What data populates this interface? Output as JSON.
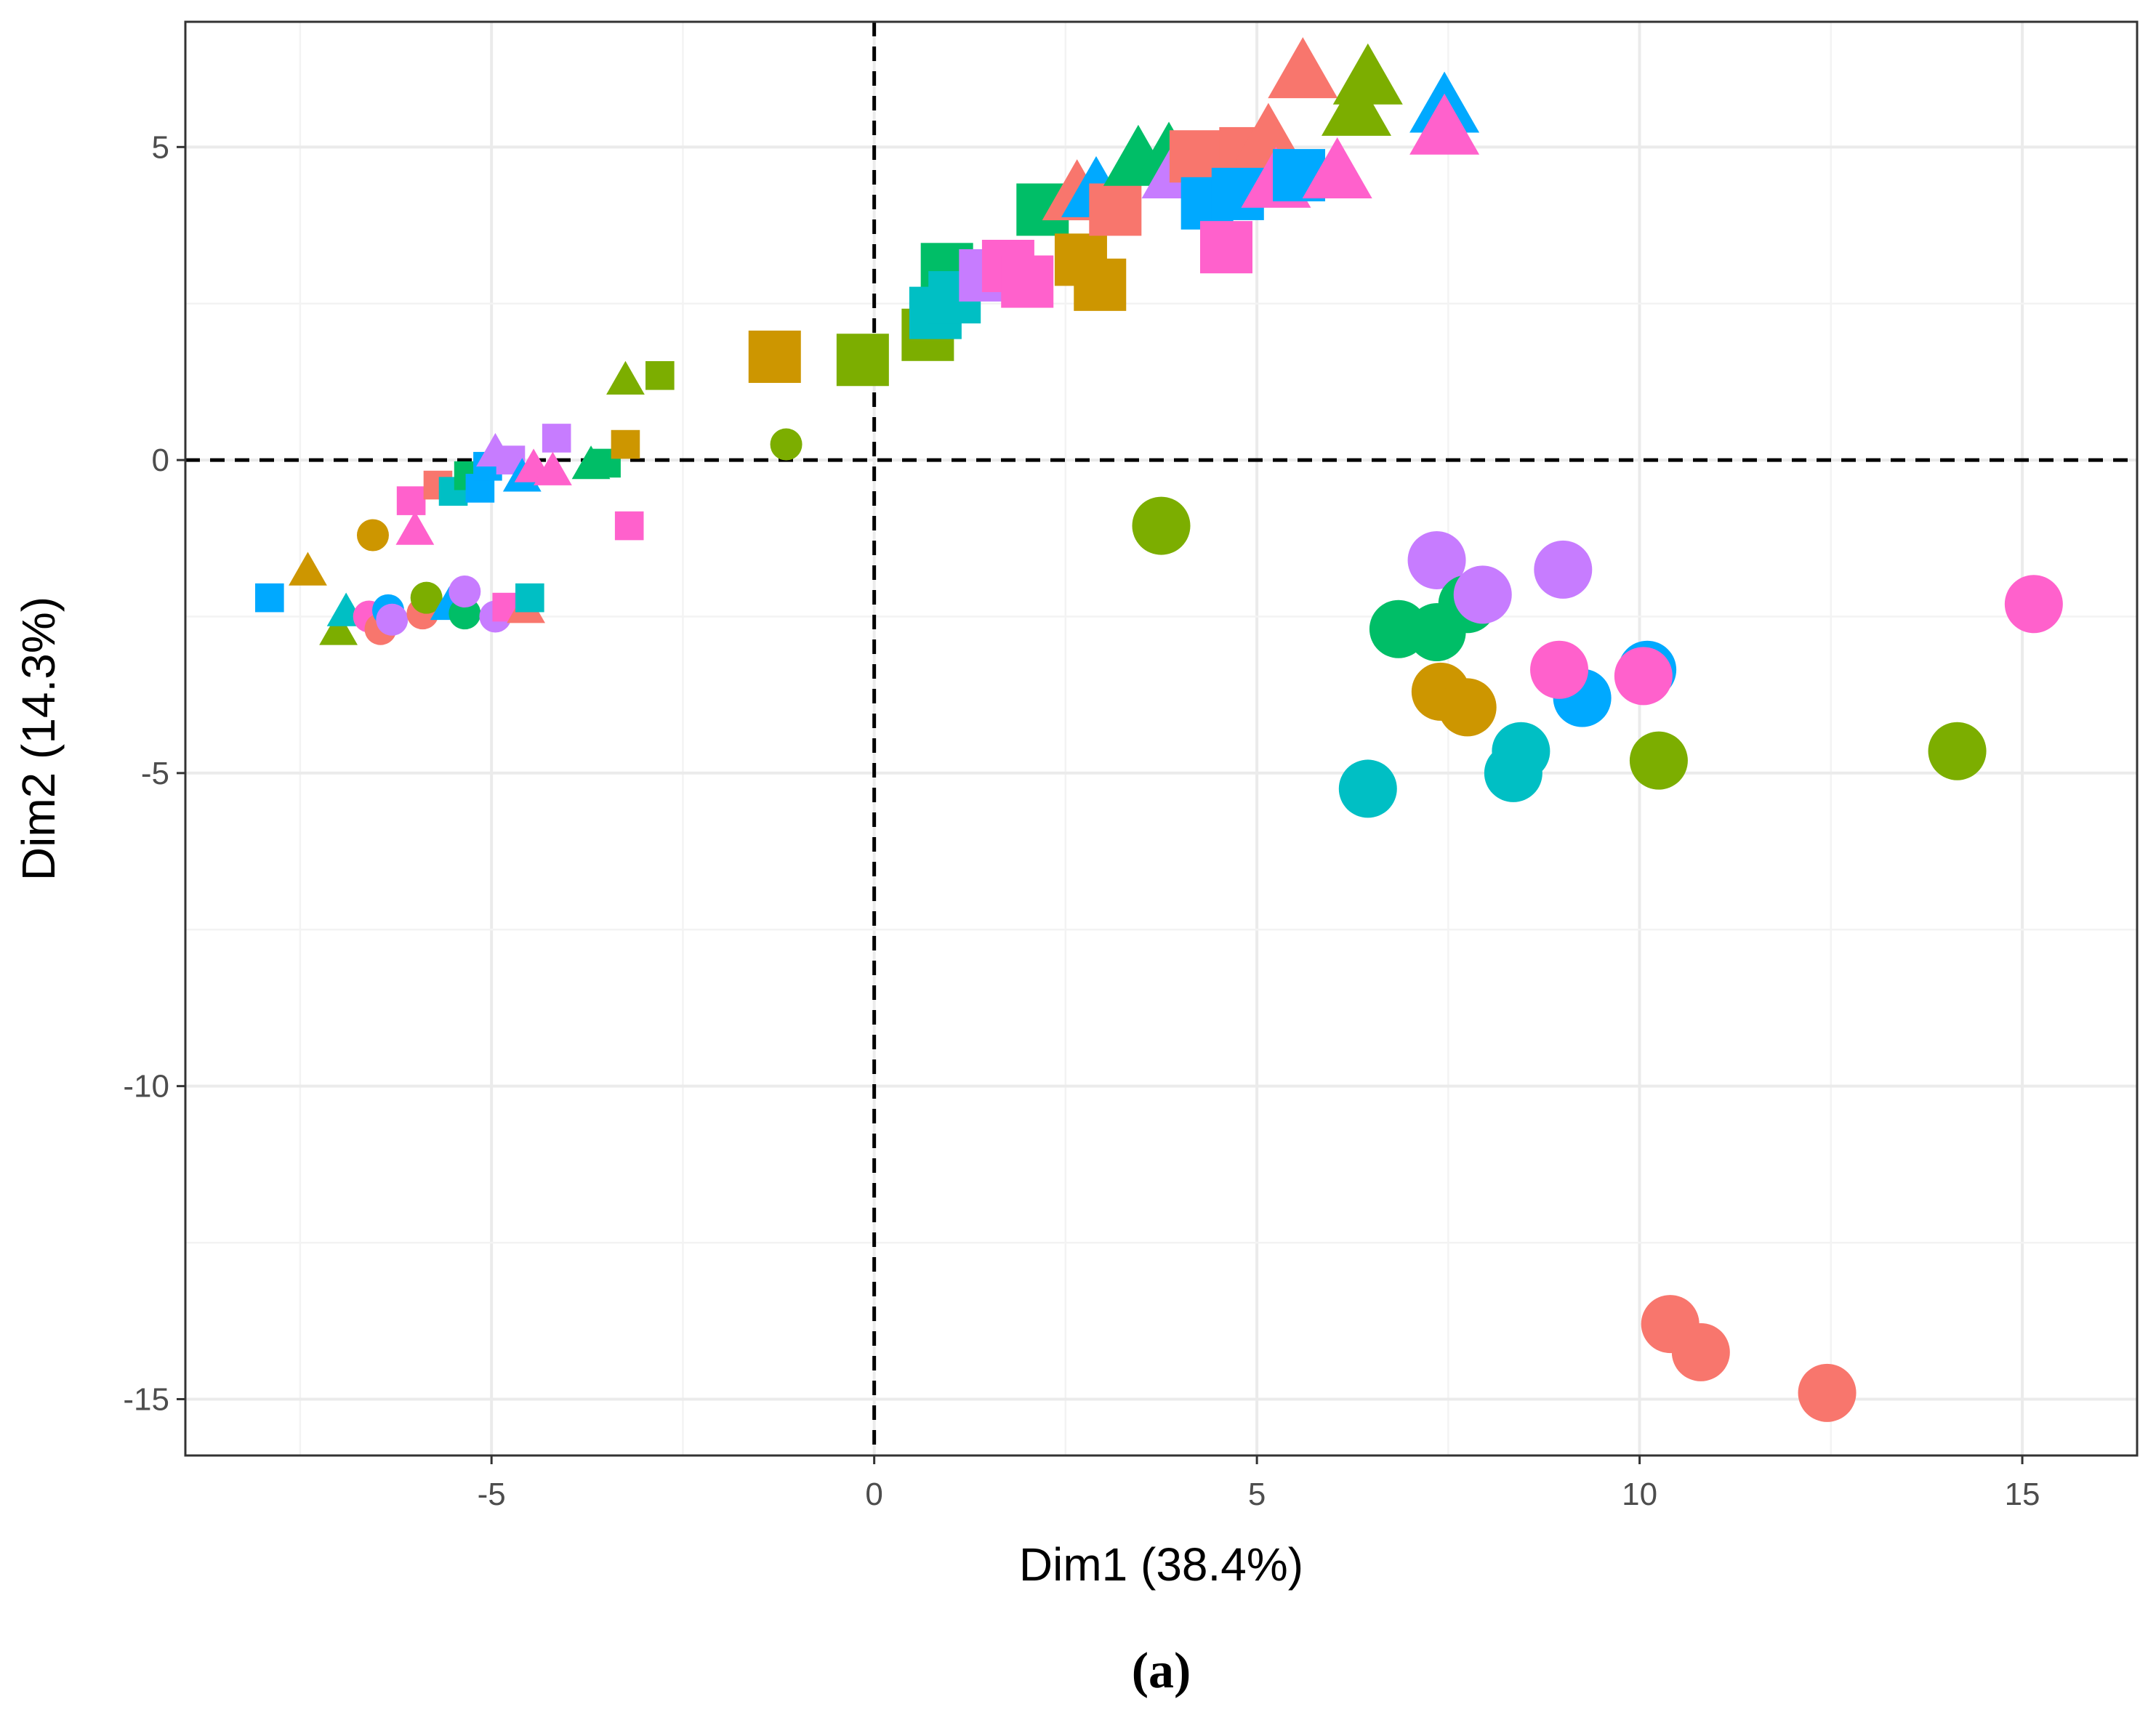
{
  "chart_data": {
    "type": "scatter",
    "xlabel": "Dim1 (38.4%)",
    "ylabel": "Dim2 (14.3%)",
    "caption": "(a)",
    "xlim": [
      -9,
      16.5
    ],
    "ylim": [
      -15.9,
      7.0
    ],
    "x_ticks": [
      -5,
      0,
      5,
      10,
      15
    ],
    "x_tick_labels": [
      "-5",
      "0",
      "5",
      "10",
      "15"
    ],
    "y_ticks": [
      5,
      0,
      -5,
      -10,
      -15
    ],
    "y_tick_labels": [
      "5",
      "0",
      "-5",
      "-10",
      "-15"
    ],
    "reference_lines": {
      "x": 0,
      "y": 0,
      "style": "dashed"
    },
    "grid": true,
    "legend": "none",
    "colors": {
      "red": "#F8766D",
      "mustard": "#CD9600",
      "olive": "#7CAE00",
      "green": "#00BE67",
      "teal": "#00BFC4",
      "blue": "#00A9FF",
      "purple": "#C77CFF",
      "pink": "#FF61CC"
    },
    "points": [
      {
        "x": -7.9,
        "y": -2.2,
        "shape": "square",
        "color": "blue",
        "size": 1
      },
      {
        "x": -7.4,
        "y": -1.8,
        "shape": "triangle",
        "color": "mustard",
        "size": 1
      },
      {
        "x": -7.0,
        "y": -2.75,
        "shape": "triangle",
        "color": "olive",
        "size": 1
      },
      {
        "x": -6.9,
        "y": -2.45,
        "shape": "triangle",
        "color": "teal",
        "size": 1
      },
      {
        "x": -6.6,
        "y": -2.5,
        "shape": "circle",
        "color": "pink",
        "size": 1
      },
      {
        "x": -6.45,
        "y": -2.7,
        "shape": "circle",
        "color": "red",
        "size": 1
      },
      {
        "x": -6.35,
        "y": -2.4,
        "shape": "circle",
        "color": "blue",
        "size": 1
      },
      {
        "x": -6.3,
        "y": -2.55,
        "shape": "circle",
        "color": "purple",
        "size": 1
      },
      {
        "x": -5.9,
        "y": -2.45,
        "shape": "circle",
        "color": "red",
        "size": 1
      },
      {
        "x": -5.85,
        "y": -2.2,
        "shape": "circle",
        "color": "olive",
        "size": 1
      },
      {
        "x": -5.55,
        "y": -2.35,
        "shape": "triangle",
        "color": "blue",
        "size": 1
      },
      {
        "x": -5.35,
        "y": -2.45,
        "shape": "circle",
        "color": "green",
        "size": 1
      },
      {
        "x": -5.35,
        "y": -2.1,
        "shape": "circle",
        "color": "purple",
        "size": 1
      },
      {
        "x": -4.95,
        "y": -2.5,
        "shape": "circle",
        "color": "purple",
        "size": 1
      },
      {
        "x": -4.8,
        "y": -2.35,
        "shape": "square",
        "color": "pink",
        "size": 1
      },
      {
        "x": -4.55,
        "y": -2.4,
        "shape": "triangle",
        "color": "red",
        "size": 1
      },
      {
        "x": -4.5,
        "y": -2.2,
        "shape": "square",
        "color": "teal",
        "size": 1
      },
      {
        "x": -6.55,
        "y": -1.2,
        "shape": "circle",
        "color": "mustard",
        "size": 1
      },
      {
        "x": -6.0,
        "y": -1.15,
        "shape": "triangle",
        "color": "pink",
        "size": 1
      },
      {
        "x": -6.05,
        "y": -0.65,
        "shape": "square",
        "color": "pink",
        "size": 1
      },
      {
        "x": -5.7,
        "y": -0.4,
        "shape": "square",
        "color": "red",
        "size": 1
      },
      {
        "x": -5.5,
        "y": -0.5,
        "shape": "square",
        "color": "teal",
        "size": 1
      },
      {
        "x": -5.3,
        "y": -0.25,
        "shape": "square",
        "color": "green",
        "size": 1
      },
      {
        "x": -5.15,
        "y": -0.45,
        "shape": "square",
        "color": "blue",
        "size": 1
      },
      {
        "x": -5.05,
        "y": -0.1,
        "shape": "square",
        "color": "blue",
        "size": 1
      },
      {
        "x": -4.95,
        "y": 0.1,
        "shape": "triangle",
        "color": "purple",
        "size": 1
      },
      {
        "x": -4.75,
        "y": 0.0,
        "shape": "square",
        "color": "purple",
        "size": 1
      },
      {
        "x": -4.6,
        "y": -0.3,
        "shape": "triangle",
        "color": "blue",
        "size": 1
      },
      {
        "x": -4.45,
        "y": -0.15,
        "shape": "triangle",
        "color": "pink",
        "size": 1
      },
      {
        "x": -4.15,
        "y": 0.35,
        "shape": "square",
        "color": "purple",
        "size": 1
      },
      {
        "x": -4.2,
        "y": -0.2,
        "shape": "triangle",
        "color": "pink",
        "size": 1
      },
      {
        "x": -3.7,
        "y": -0.1,
        "shape": "triangle",
        "color": "green",
        "size": 1
      },
      {
        "x": -3.5,
        "y": -0.05,
        "shape": "square",
        "color": "green",
        "size": 1
      },
      {
        "x": -3.25,
        "y": 0.25,
        "shape": "square",
        "color": "mustard",
        "size": 1
      },
      {
        "x": -3.2,
        "y": -1.05,
        "shape": "square",
        "color": "pink",
        "size": 1
      },
      {
        "x": -3.25,
        "y": 1.25,
        "shape": "triangle",
        "color": "olive",
        "size": 1
      },
      {
        "x": -2.8,
        "y": 1.35,
        "shape": "square",
        "color": "olive",
        "size": 1
      },
      {
        "x": -1.15,
        "y": 0.25,
        "shape": "circle",
        "color": "olive",
        "size": 1
      },
      {
        "x": -1.3,
        "y": 1.65,
        "shape": "square",
        "color": "mustard",
        "size": 2
      },
      {
        "x": -0.15,
        "y": 1.6,
        "shape": "square",
        "color": "olive",
        "size": 2
      },
      {
        "x": 0.7,
        "y": 2.0,
        "shape": "square",
        "color": "olive",
        "size": 2
      },
      {
        "x": 0.95,
        "y": 3.05,
        "shape": "square",
        "color": "green",
        "size": 2
      },
      {
        "x": 0.8,
        "y": 2.35,
        "shape": "square",
        "color": "teal",
        "size": 2
      },
      {
        "x": 1.05,
        "y": 2.6,
        "shape": "square",
        "color": "teal",
        "size": 2
      },
      {
        "x": 1.45,
        "y": 2.95,
        "shape": "square",
        "color": "purple",
        "size": 2
      },
      {
        "x": 1.75,
        "y": 3.1,
        "shape": "square",
        "color": "pink",
        "size": 2
      },
      {
        "x": 2.0,
        "y": 2.85,
        "shape": "square",
        "color": "pink",
        "size": 2
      },
      {
        "x": 2.2,
        "y": 4.0,
        "shape": "square",
        "color": "green",
        "size": 2
      },
      {
        "x": 2.7,
        "y": 3.2,
        "shape": "square",
        "color": "mustard",
        "size": 2
      },
      {
        "x": 2.95,
        "y": 2.8,
        "shape": "square",
        "color": "mustard",
        "size": 2
      },
      {
        "x": 2.65,
        "y": 4.2,
        "shape": "triangle",
        "color": "red",
        "size": 2
      },
      {
        "x": 2.9,
        "y": 4.25,
        "shape": "triangle",
        "color": "blue",
        "size": 2
      },
      {
        "x": 3.15,
        "y": 4.0,
        "shape": "square",
        "color": "red",
        "size": 2
      },
      {
        "x": 3.45,
        "y": 4.75,
        "shape": "triangle",
        "color": "green",
        "size": 2
      },
      {
        "x": 3.85,
        "y": 4.8,
        "shape": "triangle",
        "color": "green",
        "size": 2
      },
      {
        "x": 3.95,
        "y": 4.55,
        "shape": "triangle",
        "color": "purple",
        "size": 2
      },
      {
        "x": 4.2,
        "y": 4.85,
        "shape": "square",
        "color": "red",
        "size": 2
      },
      {
        "x": 4.85,
        "y": 4.9,
        "shape": "square",
        "color": "red",
        "size": 2
      },
      {
        "x": 5.15,
        "y": 5.1,
        "shape": "triangle",
        "color": "red",
        "size": 2
      },
      {
        "x": 4.35,
        "y": 4.1,
        "shape": "square",
        "color": "blue",
        "size": 2
      },
      {
        "x": 4.75,
        "y": 4.25,
        "shape": "square",
        "color": "blue",
        "size": 2
      },
      {
        "x": 5.25,
        "y": 4.4,
        "shape": "triangle",
        "color": "pink",
        "size": 2
      },
      {
        "x": 5.55,
        "y": 4.55,
        "shape": "square",
        "color": "blue",
        "size": 2
      },
      {
        "x": 6.05,
        "y": 4.55,
        "shape": "triangle",
        "color": "pink",
        "size": 2
      },
      {
        "x": 4.6,
        "y": 3.4,
        "shape": "square",
        "color": "pink",
        "size": 2
      },
      {
        "x": 5.6,
        "y": 6.15,
        "shape": "triangle",
        "color": "red",
        "size": 2
      },
      {
        "x": 6.3,
        "y": 5.55,
        "shape": "triangle",
        "color": "olive",
        "size": 2
      },
      {
        "x": 6.45,
        "y": 6.05,
        "shape": "triangle",
        "color": "olive",
        "size": 2
      },
      {
        "x": 7.45,
        "y": 5.6,
        "shape": "triangle",
        "color": "blue",
        "size": 2
      },
      {
        "x": 7.45,
        "y": 5.25,
        "shape": "triangle",
        "color": "pink",
        "size": 2
      },
      {
        "x": 3.75,
        "y": -1.05,
        "shape": "circle",
        "color": "olive",
        "size": 2
      },
      {
        "x": 6.45,
        "y": -5.25,
        "shape": "circle",
        "color": "teal",
        "size": 2
      },
      {
        "x": 6.85,
        "y": -2.7,
        "shape": "circle",
        "color": "green",
        "size": 2
      },
      {
        "x": 7.35,
        "y": -2.75,
        "shape": "circle",
        "color": "green",
        "size": 2
      },
      {
        "x": 7.35,
        "y": -1.6,
        "shape": "circle",
        "color": "purple",
        "size": 2
      },
      {
        "x": 7.75,
        "y": -2.3,
        "shape": "circle",
        "color": "green",
        "size": 2
      },
      {
        "x": 7.95,
        "y": -2.15,
        "shape": "circle",
        "color": "purple",
        "size": 2
      },
      {
        "x": 7.4,
        "y": -3.7,
        "shape": "circle",
        "color": "mustard",
        "size": 2
      },
      {
        "x": 7.75,
        "y": -3.95,
        "shape": "circle",
        "color": "mustard",
        "size": 2
      },
      {
        "x": 8.45,
        "y": -4.65,
        "shape": "circle",
        "color": "teal",
        "size": 2
      },
      {
        "x": 8.35,
        "y": -5.0,
        "shape": "circle",
        "color": "teal",
        "size": 2
      },
      {
        "x": 9.0,
        "y": -1.75,
        "shape": "circle",
        "color": "purple",
        "size": 2
      },
      {
        "x": 9.25,
        "y": -3.8,
        "shape": "circle",
        "color": "blue",
        "size": 2
      },
      {
        "x": 8.95,
        "y": -3.35,
        "shape": "circle",
        "color": "pink",
        "size": 2
      },
      {
        "x": 10.1,
        "y": -3.35,
        "shape": "circle",
        "color": "blue",
        "size": 2
      },
      {
        "x": 10.05,
        "y": -3.45,
        "shape": "circle",
        "color": "pink",
        "size": 2
      },
      {
        "x": 10.25,
        "y": -4.8,
        "shape": "circle",
        "color": "olive",
        "size": 2
      },
      {
        "x": 14.15,
        "y": -4.65,
        "shape": "circle",
        "color": "olive",
        "size": 2
      },
      {
        "x": 15.15,
        "y": -2.3,
        "shape": "circle",
        "color": "pink",
        "size": 2
      },
      {
        "x": 10.4,
        "y": -13.8,
        "shape": "circle",
        "color": "red",
        "size": 2
      },
      {
        "x": 10.8,
        "y": -14.25,
        "shape": "circle",
        "color": "red",
        "size": 2
      },
      {
        "x": 12.45,
        "y": -14.9,
        "shape": "circle",
        "color": "red",
        "size": 2
      }
    ]
  }
}
